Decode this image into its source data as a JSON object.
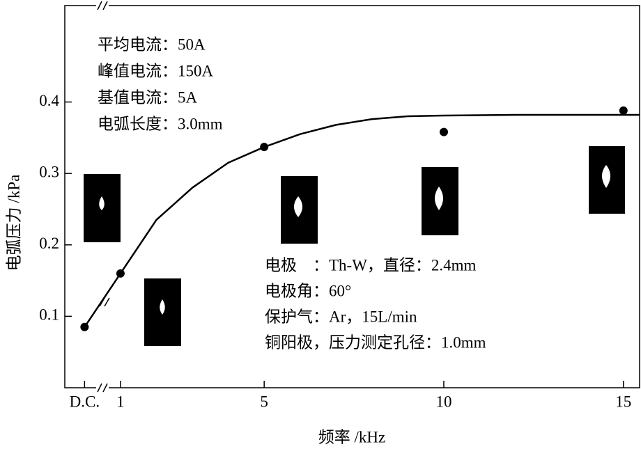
{
  "chart_data": {
    "type": "scatter",
    "x_label": "频率 /kHz",
    "y_label": "电弧压力 /kPa",
    "xlim": [
      -0.55,
      15.45
    ],
    "ylim": [
      0,
      0.535
    ],
    "xticks": [
      {
        "value": 0,
        "label": "D.C."
      },
      1,
      5,
      10,
      15
    ],
    "yticks": [
      0.1,
      0.2,
      0.3,
      0.4
    ],
    "points": {
      "x": [
        0,
        1,
        5,
        10,
        15
      ],
      "y": [
        0.085,
        0.16,
        0.337,
        0.358,
        0.388
      ],
      "color": "#000000"
    },
    "curve": {
      "x": [
        0,
        1,
        2,
        3,
        4,
        5,
        6,
        7,
        8,
        9,
        10,
        12,
        15.45
      ],
      "y": [
        0.085,
        0.16,
        0.235,
        0.28,
        0.315,
        0.337,
        0.355,
        0.368,
        0.376,
        0.38,
        0.381,
        0.382,
        0.382
      ],
      "color": "#000000"
    },
    "annotations_top": [
      "平均电流：50A",
      "峰值电流：150A",
      "基值电流：5A",
      "电弧长度：3.0mm"
    ],
    "annotations_bottom": [
      "电极　：Th-W，直径：2.4mm",
      "电极角：60°",
      "保护气：Ar，15L/min",
      "铜阳极，压力测定孔径：1.0mm"
    ]
  }
}
